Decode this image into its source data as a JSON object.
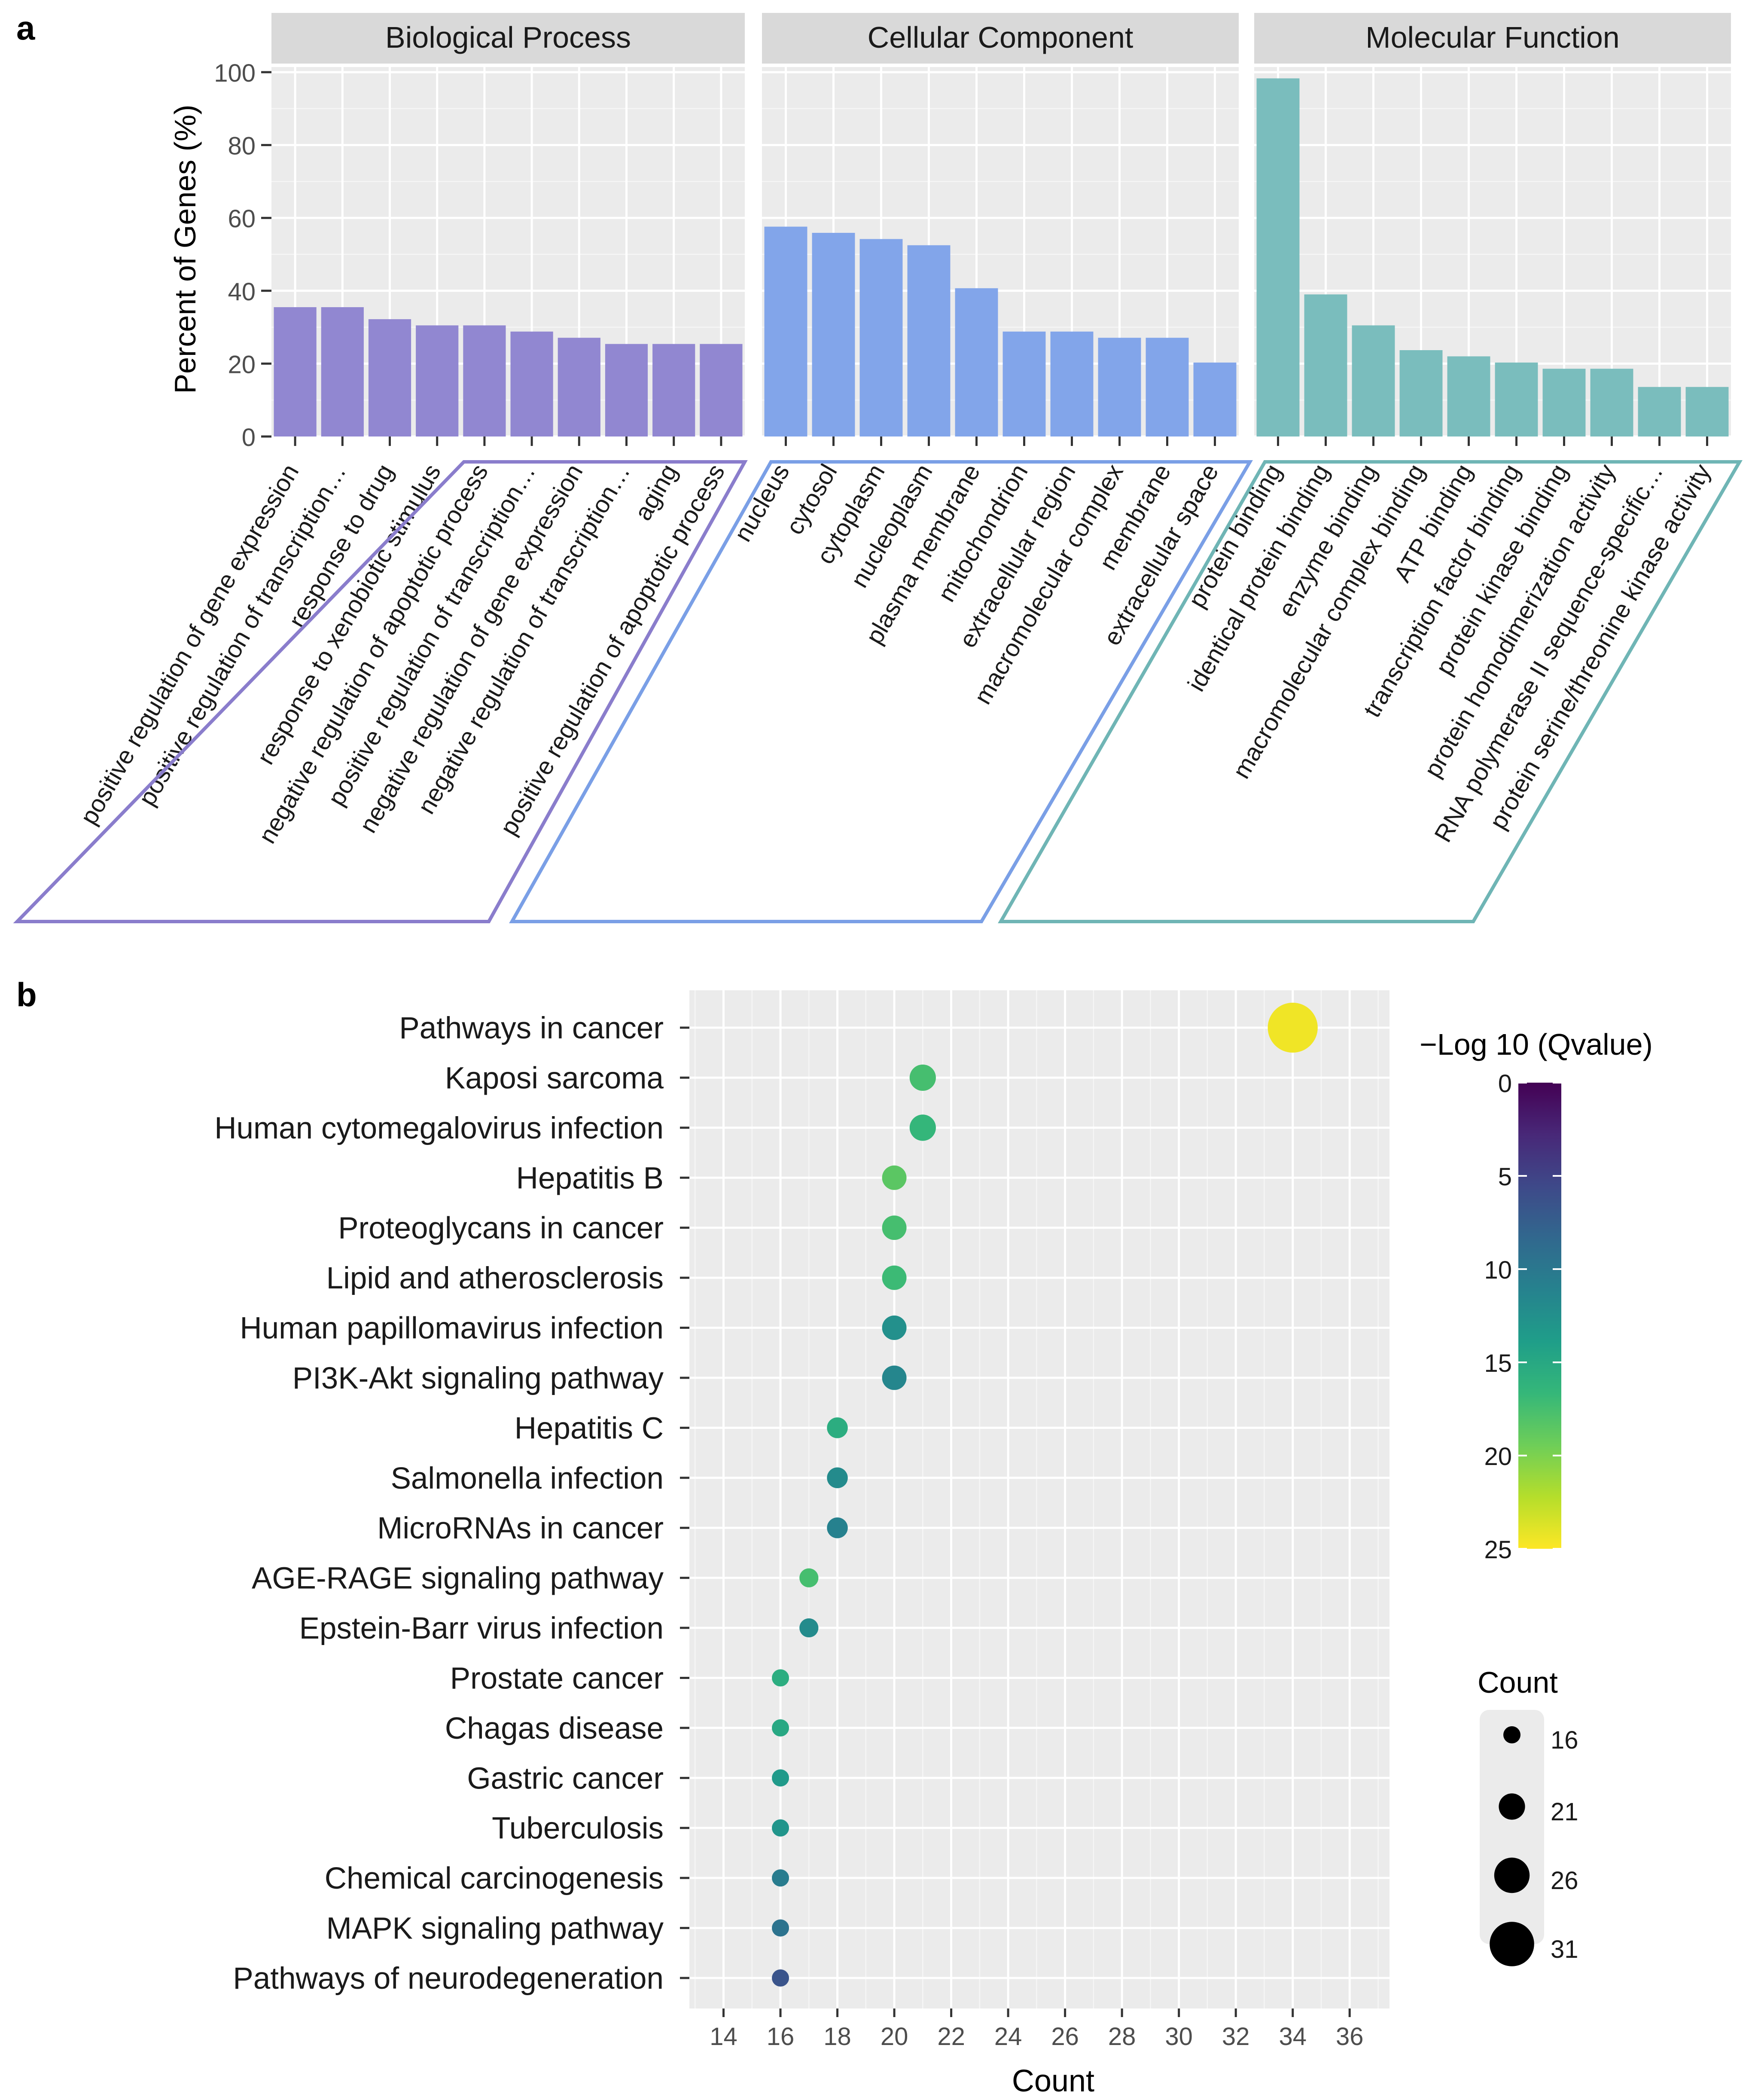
{
  "colors": {
    "bp_bar": "#9187d1",
    "cc_bar": "#82a5ea",
    "mf_bar": "#7abdbd",
    "panel_bg": "#ebebeb",
    "strip_bg": "#d9d9d9",
    "viridis": [
      "#fde725",
      "#b5de2b",
      "#6ece58",
      "#35b779",
      "#1f9e89",
      "#26828e",
      "#31688e",
      "#3e4989",
      "#482878",
      "#440154"
    ]
  },
  "chart_data": [
    {
      "type": "bar",
      "panel_label": "a",
      "ylabel": "Percent of Genes (%)",
      "ylim": [
        0,
        100
      ],
      "yticks": [
        0,
        20,
        40,
        60,
        80,
        100
      ],
      "facets": [
        {
          "strip": "Biological Process",
          "categories": [
            "positive regulation of gene expression",
            "positive regulation of transcription…",
            "response to drug",
            "response to xenobiotic stimulus",
            "negative regulation of apoptotic process",
            "positive regulation of transcription…",
            "negative regulation of gene expression",
            "negative regulation of transcription…",
            "aging",
            "positive regulation of apoptotic process"
          ],
          "values": [
            35.5,
            35.5,
            32.2,
            30.5,
            30.5,
            28.8,
            27.1,
            25.4,
            25.4,
            25.4
          ]
        },
        {
          "strip": "Cellular Component",
          "categories": [
            "nucleus",
            "cytosol",
            "cytoplasm",
            "nucleoplasm",
            "plasma membrane",
            "mitochondrion",
            "extracellular region",
            "macromolecular complex",
            "membrane",
            "extracellular space"
          ],
          "values": [
            57.6,
            55.9,
            54.2,
            52.5,
            40.7,
            28.8,
            28.8,
            27.1,
            27.1,
            20.3
          ]
        },
        {
          "strip": "Molecular Function",
          "categories": [
            "protein binding",
            "identical protein binding",
            "enzyme binding",
            "macromolecular complex binding",
            "ATP binding",
            "transcription factor binding",
            "protein kinase binding",
            "protein homodimerization activity",
            "RNA polymerase II sequence-specific…",
            "protein serine/threonine kinase activity"
          ],
          "values": [
            98.3,
            39.0,
            30.5,
            23.7,
            22.0,
            20.3,
            18.6,
            18.6,
            13.6,
            13.6
          ]
        }
      ]
    },
    {
      "type": "scatter",
      "panel_label": "b",
      "xlabel": "Count",
      "xlim": [
        12.8,
        37.4
      ],
      "xticks": [
        14,
        16,
        18,
        20,
        22,
        24,
        26,
        28,
        30,
        32,
        34,
        36
      ],
      "categories": [
        "Pathways in cancer",
        "Kaposi sarcoma",
        "Human cytomegalovirus infection",
        "Hepatitis B",
        "Proteoglycans in cancer",
        "Lipid and atherosclerosis",
        "Human papillomavirus infection",
        "PI3K-Akt signaling pathway",
        "Hepatitis C",
        "Salmonella infection",
        "MicroRNAs in cancer",
        "AGE-RAGE signaling pathway",
        "Epstein-Barr virus infection",
        "Prostate cancer",
        "Chagas disease",
        "Gastric cancer",
        "Tuberculosis",
        "Chemical carcinogenesis",
        "MAPK signaling pathway",
        "Pathways of neurodegeneration"
      ],
      "counts": [
        34,
        21,
        21,
        20,
        20,
        20,
        20,
        20,
        18,
        18,
        18,
        17,
        17,
        16,
        16,
        16,
        16,
        16,
        16,
        16
      ],
      "neg_log10_q": [
        24.5,
        17.5,
        16.5,
        18.5,
        17.5,
        17.0,
        12.5,
        11.5,
        15.5,
        12.0,
        11.0,
        17.5,
        12.0,
        15.5,
        15.0,
        13.5,
        13.0,
        10.5,
        9.5,
        6.5
      ],
      "color_legend": {
        "title": "−Log 10 (Qvalue)",
        "range": [
          0,
          25
        ],
        "ticks": [
          0,
          5,
          10,
          15,
          20,
          25
        ]
      },
      "size_legend": {
        "title": "Count",
        "values": [
          16,
          21,
          26,
          31
        ]
      }
    }
  ]
}
